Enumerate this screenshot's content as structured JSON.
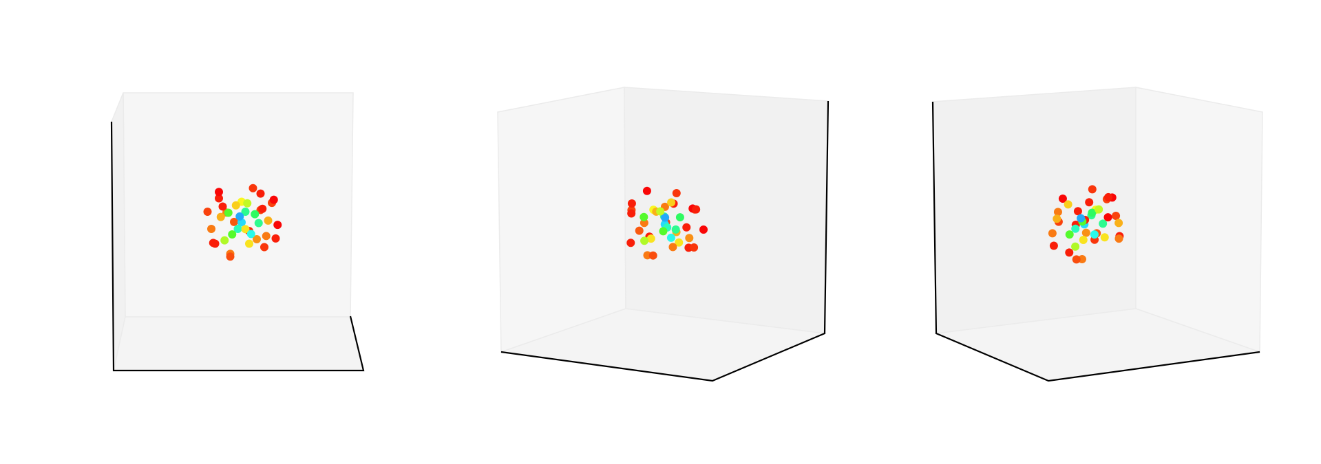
{
  "chart_data": {
    "type": "scatter3d",
    "colormap": "rainbow",
    "views": [
      {
        "elev": 5,
        "azim": -90
      },
      {
        "elev": 20,
        "azim": -60
      },
      {
        "elev": 20,
        "azim": -120
      }
    ],
    "x": [
      0.8,
      -0.7,
      0.5,
      -0.4,
      0.9,
      -0.9,
      0.2,
      -0.2,
      0.6,
      -0.6,
      0.3,
      -0.3,
      0.0,
      0.1,
      -0.1,
      0.7,
      -0.8,
      0.4,
      -0.5,
      0.85,
      -0.3,
      0.5,
      -0.6,
      0.2,
      0.0,
      0.65,
      -0.75,
      0.35,
      -0.15,
      0.1,
      0.95,
      -0.55,
      0.45,
      -0.35,
      0.25,
      -0.05,
      0.55,
      -0.45,
      0.15,
      -0.25
    ],
    "y": [
      0.3,
      0.5,
      -0.7,
      0.8,
      -0.2,
      -0.1,
      0.9,
      -0.9,
      0.6,
      -0.6,
      0.2,
      -0.3,
      0.1,
      -0.1,
      0.4,
      -0.5,
      0.4,
      0.7,
      -0.8,
      0.1,
      0.0,
      -0.3,
      0.2,
      0.5,
      -0.5,
      -0.6,
      -0.4,
      0.3,
      0.7,
      -0.8,
      0.5,
      0.6,
      -0.1,
      -0.4,
      0.0,
      0.2,
      0.8,
      -0.2,
      -0.4,
      0.45
    ],
    "z": [
      0.5,
      -0.6,
      0.4,
      0.2,
      -0.4,
      0.3,
      -0.3,
      0.1,
      -0.7,
      0.7,
      0.9,
      -0.8,
      0.0,
      0.3,
      -0.2,
      0.1,
      -0.2,
      -0.5,
      0.5,
      0.6,
      -0.9,
      0.8,
      0.8,
      -0.6,
      0.6,
      -0.3,
      -0.5,
      0.2,
      0.4,
      -0.1,
      -0.1,
      0.1,
      0.0,
      0.3,
      -0.3,
      0.15,
      0.3,
      -0.45,
      0.55,
      -0.35
    ],
    "values": [
      0.95,
      0.98,
      0.95,
      0.9,
      0.98,
      0.95,
      0.98,
      0.93,
      0.96,
      0.98,
      0.96,
      0.9,
      0.3,
      0.45,
      0.4,
      0.85,
      0.9,
      0.88,
      0.98,
      1.0,
      0.94,
      0.98,
      1.0,
      0.8,
      0.78,
      0.9,
      0.98,
      0.5,
      0.82,
      0.8,
      1.0,
      0.85,
      0.45,
      0.6,
      0.35,
      0.25,
      0.98,
      0.7,
      0.72,
      0.6
    ]
  }
}
